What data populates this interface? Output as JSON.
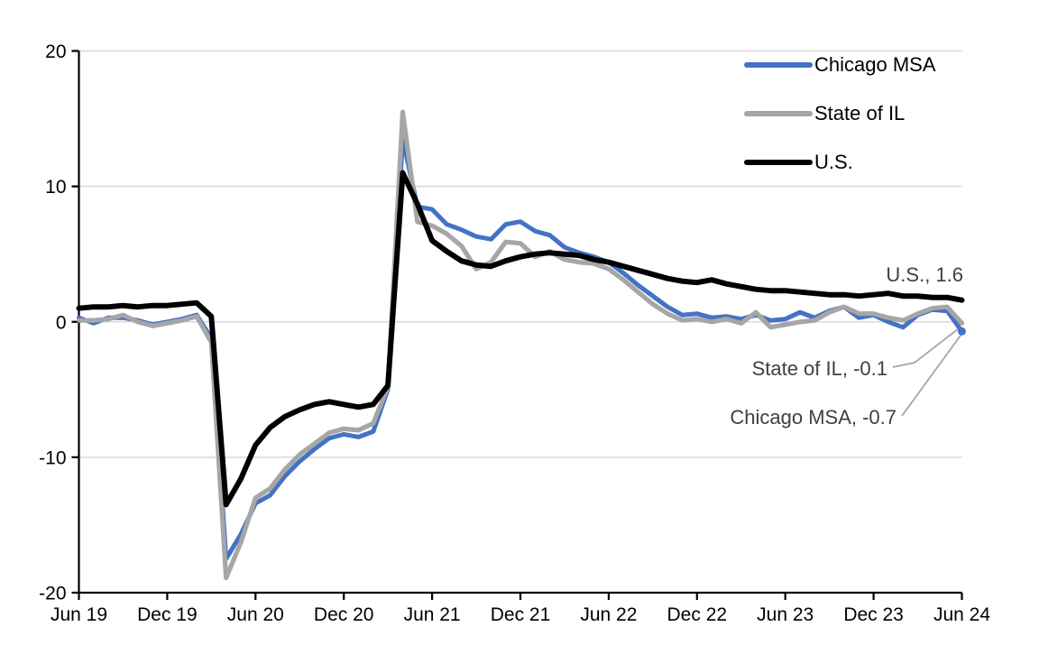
{
  "chart_data": {
    "type": "line",
    "title": "",
    "xlabel": "",
    "ylabel": "",
    "ylim": [
      -20,
      20
    ],
    "grid": "horizontal",
    "legend_position": "top-right-inside",
    "gridline_color": "#d9d9d9",
    "axis_color": "#000000",
    "annotation_text_color": "#404040",
    "leader_line_color": "#a6a6a6",
    "y_tick_values": [
      20,
      10,
      0,
      -10,
      -20
    ],
    "y_tick_labels": [
      "20",
      "10",
      "0",
      "-10",
      "-20"
    ],
    "x_tick_labels": [
      "Jun 19",
      "Dec 19",
      "Jun 20",
      "Dec 20",
      "Jun 21",
      "Dec 21",
      "Jun 22",
      "Dec 22",
      "Jun 23",
      "Dec 23",
      "Jun 24"
    ],
    "months": [
      "Jun 2019",
      "Jul 2019",
      "Aug 2019",
      "Sep 2019",
      "Oct 2019",
      "Nov 2019",
      "Dec 2019",
      "Jan 2020",
      "Feb 2020",
      "Mar 2020",
      "Apr 2020",
      "May 2020",
      "Jun 2020",
      "Jul 2020",
      "Aug 2020",
      "Sep 2020",
      "Oct 2020",
      "Nov 2020",
      "Dec 2020",
      "Jan 2021",
      "Feb 2021",
      "Mar 2021",
      "Apr 2021",
      "May 2021",
      "Jun 2021",
      "Jul 2021",
      "Aug 2021",
      "Sep 2021",
      "Oct 2021",
      "Nov 2021",
      "Dec 2021",
      "Jan 2022",
      "Feb 2022",
      "Mar 2022",
      "Apr 2022",
      "May 2022",
      "Jun 2022",
      "Jul 2022",
      "Aug 2022",
      "Sep 2022",
      "Oct 2022",
      "Nov 2022",
      "Dec 2022",
      "Jan 2023",
      "Feb 2023",
      "Mar 2023",
      "Apr 2023",
      "May 2023",
      "Jun 2023",
      "Jul 2023",
      "Aug 2023",
      "Sep 2023",
      "Oct 2023",
      "Nov 2023",
      "Dec 2023",
      "Jan 2024",
      "Feb 2024",
      "Mar 2024",
      "Apr 2024",
      "May 2024",
      "Jun 2024"
    ],
    "series": [
      {
        "name": "Chicago MSA",
        "color": "#4472c4",
        "end_label": "Chicago MSA, -0.7",
        "end_value": -0.7,
        "values": [
          0.3,
          -0.1,
          0.3,
          0.3,
          0.1,
          -0.2,
          0.0,
          0.2,
          0.5,
          -1.2,
          -17.5,
          -15.7,
          -13.4,
          -12.8,
          -11.4,
          -10.3,
          -9.4,
          -8.6,
          -8.3,
          -8.5,
          -8.1,
          -5.0,
          13.5,
          8.5,
          8.3,
          7.2,
          6.8,
          6.3,
          6.1,
          7.2,
          7.4,
          6.7,
          6.4,
          5.5,
          5.1,
          4.8,
          4.4,
          3.6,
          2.7,
          1.9,
          1.1,
          0.5,
          0.6,
          0.3,
          0.4,
          0.2,
          0.5,
          0.1,
          0.2,
          0.7,
          0.3,
          0.8,
          1.1,
          0.3,
          0.5,
          0.0,
          -0.4,
          0.5,
          0.9,
          0.8,
          -0.7
        ]
      },
      {
        "name": "State of IL",
        "color": "#a6a6a6",
        "end_label": "State of IL, -0.1",
        "end_value": -0.1,
        "values": [
          0.1,
          0.1,
          0.2,
          0.5,
          0.0,
          -0.3,
          -0.1,
          0.1,
          0.4,
          -1.5,
          -18.9,
          -16.3,
          -13.0,
          -12.3,
          -10.9,
          -9.8,
          -9.0,
          -8.2,
          -7.9,
          -8.0,
          -7.5,
          -4.8,
          15.5,
          7.4,
          7.1,
          6.5,
          5.6,
          3.9,
          4.4,
          5.9,
          5.8,
          4.8,
          5.2,
          4.6,
          4.4,
          4.3,
          3.9,
          3.1,
          2.2,
          1.3,
          0.6,
          0.1,
          0.2,
          0.0,
          0.2,
          -0.1,
          0.7,
          -0.4,
          -0.2,
          0.0,
          0.1,
          0.7,
          1.1,
          0.6,
          0.6,
          0.3,
          0.1,
          0.6,
          1.0,
          1.1,
          -0.1
        ]
      },
      {
        "name": "U.S.",
        "color": "#000000",
        "end_label": "U.S., 1.6",
        "end_value": 1.6,
        "values": [
          1.0,
          1.1,
          1.1,
          1.2,
          1.1,
          1.2,
          1.2,
          1.3,
          1.4,
          0.4,
          -13.5,
          -11.6,
          -9.1,
          -7.8,
          -7.0,
          -6.5,
          -6.1,
          -5.9,
          -6.1,
          -6.3,
          -6.1,
          -4.7,
          11.0,
          8.7,
          6.0,
          5.2,
          4.5,
          4.2,
          4.1,
          4.5,
          4.8,
          5.0,
          5.1,
          5.0,
          4.9,
          4.6,
          4.4,
          4.1,
          3.8,
          3.5,
          3.2,
          3.0,
          2.9,
          3.1,
          2.8,
          2.6,
          2.4,
          2.3,
          2.3,
          2.2,
          2.1,
          2.0,
          2.0,
          1.9,
          2.0,
          2.1,
          1.9,
          1.9,
          1.8,
          1.8,
          1.6
        ]
      }
    ],
    "annotations": [
      {
        "text": "U.S., 1.6",
        "series": "U.S."
      },
      {
        "text": "State of IL, -0.1",
        "series": "State of IL"
      },
      {
        "text": "Chicago MSA, -0.7",
        "series": "Chicago MSA"
      }
    ]
  }
}
